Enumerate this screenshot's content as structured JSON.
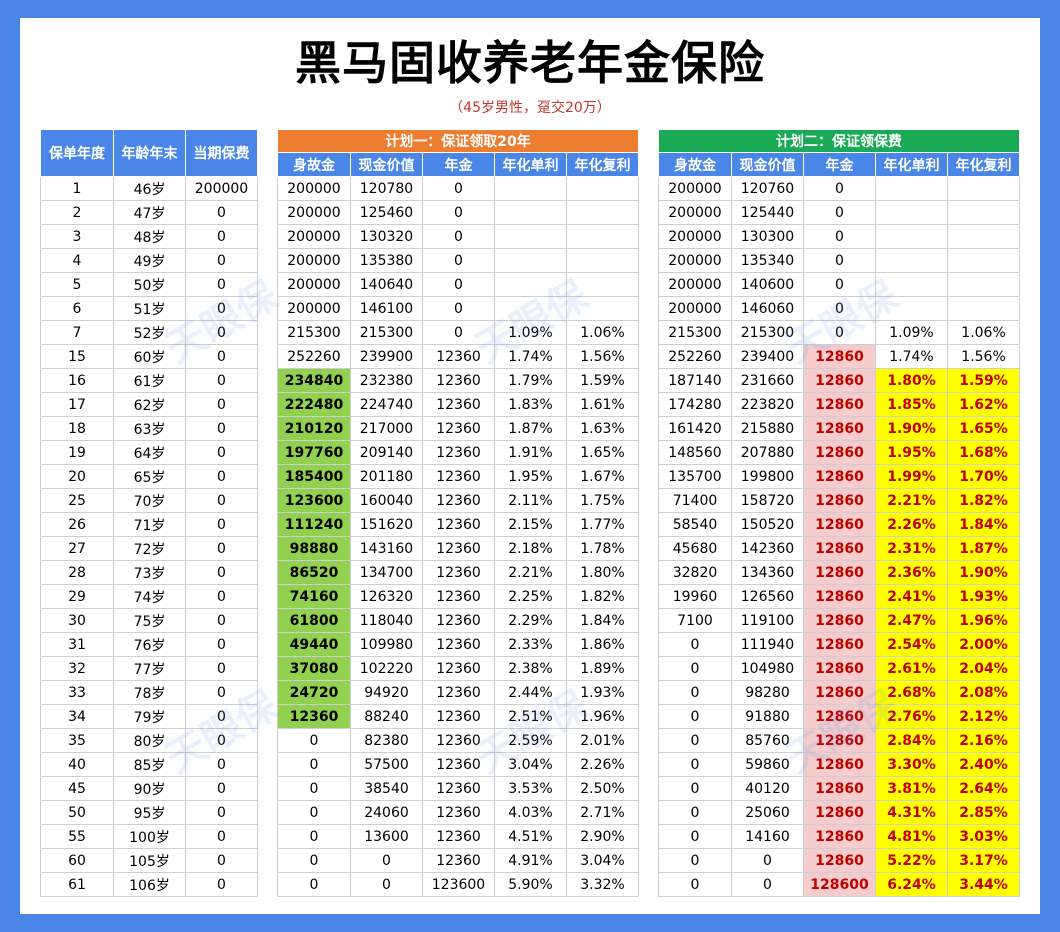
{
  "title": "黑马固收养老年金保险",
  "subtitle": "（45岁男性，趸交20万）",
  "watermark": "天眼保",
  "left_table": {
    "headers": [
      "保单年度",
      "年龄年末",
      "当期保费"
    ],
    "rows": [
      [
        "1",
        "46岁",
        "200000"
      ],
      [
        "2",
        "47岁",
        "0"
      ],
      [
        "3",
        "48岁",
        "0"
      ],
      [
        "4",
        "49岁",
        "0"
      ],
      [
        "5",
        "50岁",
        "0"
      ],
      [
        "6",
        "51岁",
        "0"
      ],
      [
        "7",
        "52岁",
        "0"
      ],
      [
        "15",
        "60岁",
        "0"
      ],
      [
        "16",
        "61岁",
        "0"
      ],
      [
        "17",
        "62岁",
        "0"
      ],
      [
        "18",
        "63岁",
        "0"
      ],
      [
        "19",
        "64岁",
        "0"
      ],
      [
        "20",
        "65岁",
        "0"
      ],
      [
        "25",
        "70岁",
        "0"
      ],
      [
        "26",
        "71岁",
        "0"
      ],
      [
        "27",
        "72岁",
        "0"
      ],
      [
        "28",
        "73岁",
        "0"
      ],
      [
        "29",
        "74岁",
        "0"
      ],
      [
        "30",
        "75岁",
        "0"
      ],
      [
        "31",
        "76岁",
        "0"
      ],
      [
        "32",
        "77岁",
        "0"
      ],
      [
        "33",
        "78岁",
        "0"
      ],
      [
        "34",
        "79岁",
        "0"
      ],
      [
        "35",
        "80岁",
        "0"
      ],
      [
        "40",
        "85岁",
        "0"
      ],
      [
        "45",
        "90岁",
        "0"
      ],
      [
        "50",
        "95岁",
        "0"
      ],
      [
        "55",
        "100岁",
        "0"
      ],
      [
        "60",
        "105岁",
        "0"
      ],
      [
        "61",
        "106岁",
        "0"
      ]
    ]
  },
  "plan1": {
    "title": "计划一：保证领取20年",
    "headers": [
      "身故金",
      "现金价值",
      "年金",
      "年化单利",
      "年化复利"
    ],
    "rows": [
      [
        "200000",
        "120780",
        "0",
        "",
        ""
      ],
      [
        "200000",
        "125460",
        "0",
        "",
        ""
      ],
      [
        "200000",
        "130320",
        "0",
        "",
        ""
      ],
      [
        "200000",
        "135380",
        "0",
        "",
        ""
      ],
      [
        "200000",
        "140640",
        "0",
        "",
        ""
      ],
      [
        "200000",
        "146100",
        "0",
        "",
        ""
      ],
      [
        "215300",
        "215300",
        "0",
        "1.09%",
        "1.06%"
      ],
      [
        "252260",
        "239900",
        "12360",
        "1.74%",
        "1.56%"
      ],
      [
        "234840",
        "232380",
        "12360",
        "1.79%",
        "1.59%"
      ],
      [
        "222480",
        "224740",
        "12360",
        "1.83%",
        "1.61%"
      ],
      [
        "210120",
        "217000",
        "12360",
        "1.87%",
        "1.63%"
      ],
      [
        "197760",
        "209140",
        "12360",
        "1.91%",
        "1.65%"
      ],
      [
        "185400",
        "201180",
        "12360",
        "1.95%",
        "1.67%"
      ],
      [
        "123600",
        "160040",
        "12360",
        "2.11%",
        "1.75%"
      ],
      [
        "111240",
        "151620",
        "12360",
        "2.15%",
        "1.77%"
      ],
      [
        "98880",
        "143160",
        "12360",
        "2.18%",
        "1.78%"
      ],
      [
        "86520",
        "134700",
        "12360",
        "2.21%",
        "1.80%"
      ],
      [
        "74160",
        "126320",
        "12360",
        "2.25%",
        "1.82%"
      ],
      [
        "61800",
        "118040",
        "12360",
        "2.29%",
        "1.84%"
      ],
      [
        "49440",
        "109980",
        "12360",
        "2.33%",
        "1.86%"
      ],
      [
        "37080",
        "102220",
        "12360",
        "2.38%",
        "1.89%"
      ],
      [
        "24720",
        "94920",
        "12360",
        "2.44%",
        "1.93%"
      ],
      [
        "12360",
        "88240",
        "12360",
        "2.51%",
        "1.96%"
      ],
      [
        "0",
        "82380",
        "12360",
        "2.59%",
        "2.01%"
      ],
      [
        "0",
        "57500",
        "12360",
        "3.04%",
        "2.26%"
      ],
      [
        "0",
        "38540",
        "12360",
        "3.53%",
        "2.50%"
      ],
      [
        "0",
        "24060",
        "12360",
        "4.03%",
        "2.71%"
      ],
      [
        "0",
        "13600",
        "12360",
        "4.51%",
        "2.90%"
      ],
      [
        "0",
        "0",
        "12360",
        "4.91%",
        "3.04%"
      ],
      [
        "0",
        "0",
        "123600",
        "5.90%",
        "3.32%"
      ]
    ],
    "highlight_rows_death_benefit": [
      8,
      9,
      10,
      11,
      12,
      13,
      14,
      15,
      16,
      17,
      18,
      19,
      20,
      21,
      22
    ]
  },
  "plan2": {
    "title": "计划二：保证领保费",
    "headers": [
      "身故金",
      "现金价值",
      "年金",
      "年化单利",
      "年化复利"
    ],
    "rows": [
      [
        "200000",
        "120760",
        "0",
        "",
        ""
      ],
      [
        "200000",
        "125440",
        "0",
        "",
        ""
      ],
      [
        "200000",
        "130300",
        "0",
        "",
        ""
      ],
      [
        "200000",
        "135340",
        "0",
        "",
        ""
      ],
      [
        "200000",
        "140600",
        "0",
        "",
        ""
      ],
      [
        "200000",
        "146060",
        "0",
        "",
        ""
      ],
      [
        "215300",
        "215300",
        "0",
        "1.09%",
        "1.06%"
      ],
      [
        "252260",
        "239400",
        "12860",
        "1.74%",
        "1.56%"
      ],
      [
        "187140",
        "231660",
        "12860",
        "1.80%",
        "1.59%"
      ],
      [
        "174280",
        "223820",
        "12860",
        "1.85%",
        "1.62%"
      ],
      [
        "161420",
        "215880",
        "12860",
        "1.90%",
        "1.65%"
      ],
      [
        "148560",
        "207880",
        "12860",
        "1.95%",
        "1.68%"
      ],
      [
        "135700",
        "199800",
        "12860",
        "1.99%",
        "1.70%"
      ],
      [
        "71400",
        "158720",
        "12860",
        "2.21%",
        "1.82%"
      ],
      [
        "58540",
        "150520",
        "12860",
        "2.26%",
        "1.84%"
      ],
      [
        "45680",
        "142360",
        "12860",
        "2.31%",
        "1.87%"
      ],
      [
        "32820",
        "134360",
        "12860",
        "2.36%",
        "1.90%"
      ],
      [
        "19960",
        "126560",
        "12860",
        "2.41%",
        "1.93%"
      ],
      [
        "7100",
        "119100",
        "12860",
        "2.47%",
        "1.96%"
      ],
      [
        "0",
        "111940",
        "12860",
        "2.54%",
        "2.00%"
      ],
      [
        "0",
        "104980",
        "12860",
        "2.61%",
        "2.04%"
      ],
      [
        "0",
        "98280",
        "12860",
        "2.68%",
        "2.08%"
      ],
      [
        "0",
        "91880",
        "12860",
        "2.76%",
        "2.12%"
      ],
      [
        "0",
        "85760",
        "12860",
        "2.84%",
        "2.16%"
      ],
      [
        "0",
        "59860",
        "12860",
        "3.30%",
        "2.40%"
      ],
      [
        "0",
        "40120",
        "12860",
        "3.81%",
        "2.64%"
      ],
      [
        "0",
        "25060",
        "12860",
        "4.31%",
        "2.85%"
      ],
      [
        "0",
        "14160",
        "12860",
        "4.81%",
        "3.03%"
      ],
      [
        "0",
        "0",
        "12860",
        "5.22%",
        "3.17%"
      ],
      [
        "0",
        "0",
        "128600",
        "6.24%",
        "3.44%"
      ]
    ],
    "highlight_start_row": 7,
    "yellow_start_row": 8
  },
  "colors": {
    "frame": "#4a86e8",
    "plan1_header": "#ed7d31",
    "plan2_header": "#1aaa55",
    "green_highlight": "#92d050",
    "pink_highlight": "#f4cccc",
    "yellow_highlight": "#ffff00",
    "red_text": "#c00000"
  }
}
